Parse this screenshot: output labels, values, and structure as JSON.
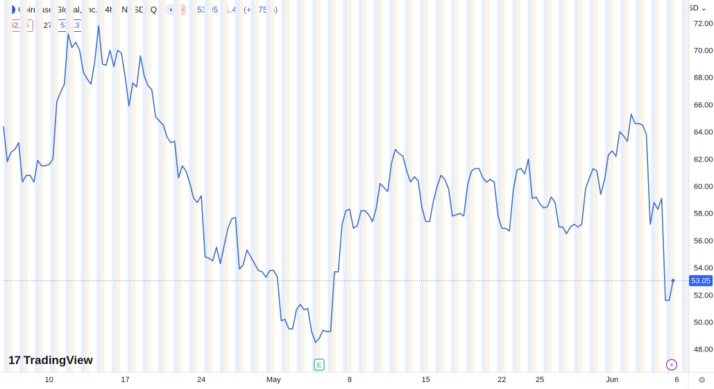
{
  "header": {
    "logo_letter": "C",
    "title": "Coinbase Global, Inc. · 4h · NASDAQ",
    "quote": "53.05 +1.42 (+2.75%)",
    "moon_icon": "moon-icon",
    "wave_icon": "approx-icon"
  },
  "bid_ask": {
    "bid": "52.86",
    "spread": "0.27",
    "ask": "53.13"
  },
  "currency_label": "USD",
  "branding": {
    "logo_mark": "17",
    "name": "TradingView"
  },
  "colors": {
    "line": "#3b6fd4",
    "band_blue": "#e7effc",
    "band_orange": "#fdf3e3",
    "last_price_bg": "#2962ff",
    "bid_border": "#e06c75",
    "ask_border": "#2962ff"
  },
  "chart_data": {
    "type": "line",
    "title": "Coinbase Global, Inc. · 4h · NASDAQ",
    "xlabel": "",
    "ylabel": "",
    "x_tick_labels": [
      "10",
      "17",
      "24",
      "May",
      "8",
      "15",
      "22",
      "25",
      "Jun",
      "6"
    ],
    "y_ticks": [
      48,
      50,
      52,
      54,
      56,
      58,
      60,
      62,
      64,
      66,
      68,
      70,
      72
    ],
    "ylim": [
      46.3,
      73.7
    ],
    "last_price": 53.05,
    "grid": false,
    "markers": [
      {
        "label": "E",
        "kind": "earnings"
      },
      {
        "label": "⚡",
        "kind": "split/dividend"
      }
    ],
    "series": [
      {
        "values": [
          64.4,
          61.8,
          62.5,
          62.7,
          63.2,
          60.3,
          60.8,
          60.8,
          60.3,
          61.9,
          61.5,
          61.5,
          61.6,
          62.0,
          66.2,
          66.9,
          67.5,
          71.2,
          70.2,
          70.6,
          70.0,
          68.4,
          67.9,
          67.5,
          69.2,
          71.8,
          69.0,
          68.9,
          70.0,
          68.8,
          70.0,
          69.8,
          68.0,
          65.9,
          67.6,
          67.3,
          69.6,
          68.1,
          67.4,
          67.1,
          65.1,
          64.8,
          64.5,
          63.6,
          63.2,
          63.3,
          60.6,
          61.5,
          61.1,
          60.2,
          59.1,
          58.8,
          59.3,
          54.8,
          54.7,
          54.5,
          55.5,
          54.3,
          55.6,
          56.9,
          57.6,
          57.7,
          53.9,
          54.2,
          55.3,
          54.8,
          54.3,
          53.8,
          53.7,
          53.3,
          53.8,
          53.8,
          53.3,
          50.1,
          50.2,
          49.5,
          49.5,
          50.9,
          51.3,
          50.9,
          51.0,
          49.3,
          48.5,
          48.8,
          49.4,
          49.3,
          49.3,
          53.7,
          53.7,
          57.2,
          58.2,
          58.3,
          56.9,
          57.1,
          58.2,
          58.2,
          57.9,
          57.4,
          58.4,
          60.2,
          59.9,
          59.6,
          61.7,
          62.7,
          62.4,
          62.2,
          61.1,
          60.3,
          60.7,
          60.4,
          58.4,
          57.4,
          57.4,
          58.9,
          60.0,
          60.8,
          60.5,
          59.8,
          57.8,
          57.9,
          58.0,
          57.8,
          60.1,
          61.1,
          61.3,
          61.3,
          60.6,
          60.3,
          60.5,
          60.3,
          57.8,
          56.9,
          56.9,
          56.7,
          59.7,
          61.2,
          61.3,
          60.9,
          62.0,
          59.1,
          59.2,
          58.7,
          58.4,
          58.5,
          59.2,
          58.8,
          57.0,
          57.0,
          56.5,
          57.0,
          57.2,
          57.0,
          57.2,
          59.8,
          60.6,
          61.3,
          61.1,
          59.4,
          60.5,
          62.3,
          62.6,
          62.2,
          64.0,
          63.7,
          63.3,
          65.3,
          64.6,
          64.6,
          64.5,
          63.8,
          57.2,
          58.8,
          58.3,
          59.1,
          51.6,
          51.6,
          53.05
        ]
      }
    ]
  }
}
